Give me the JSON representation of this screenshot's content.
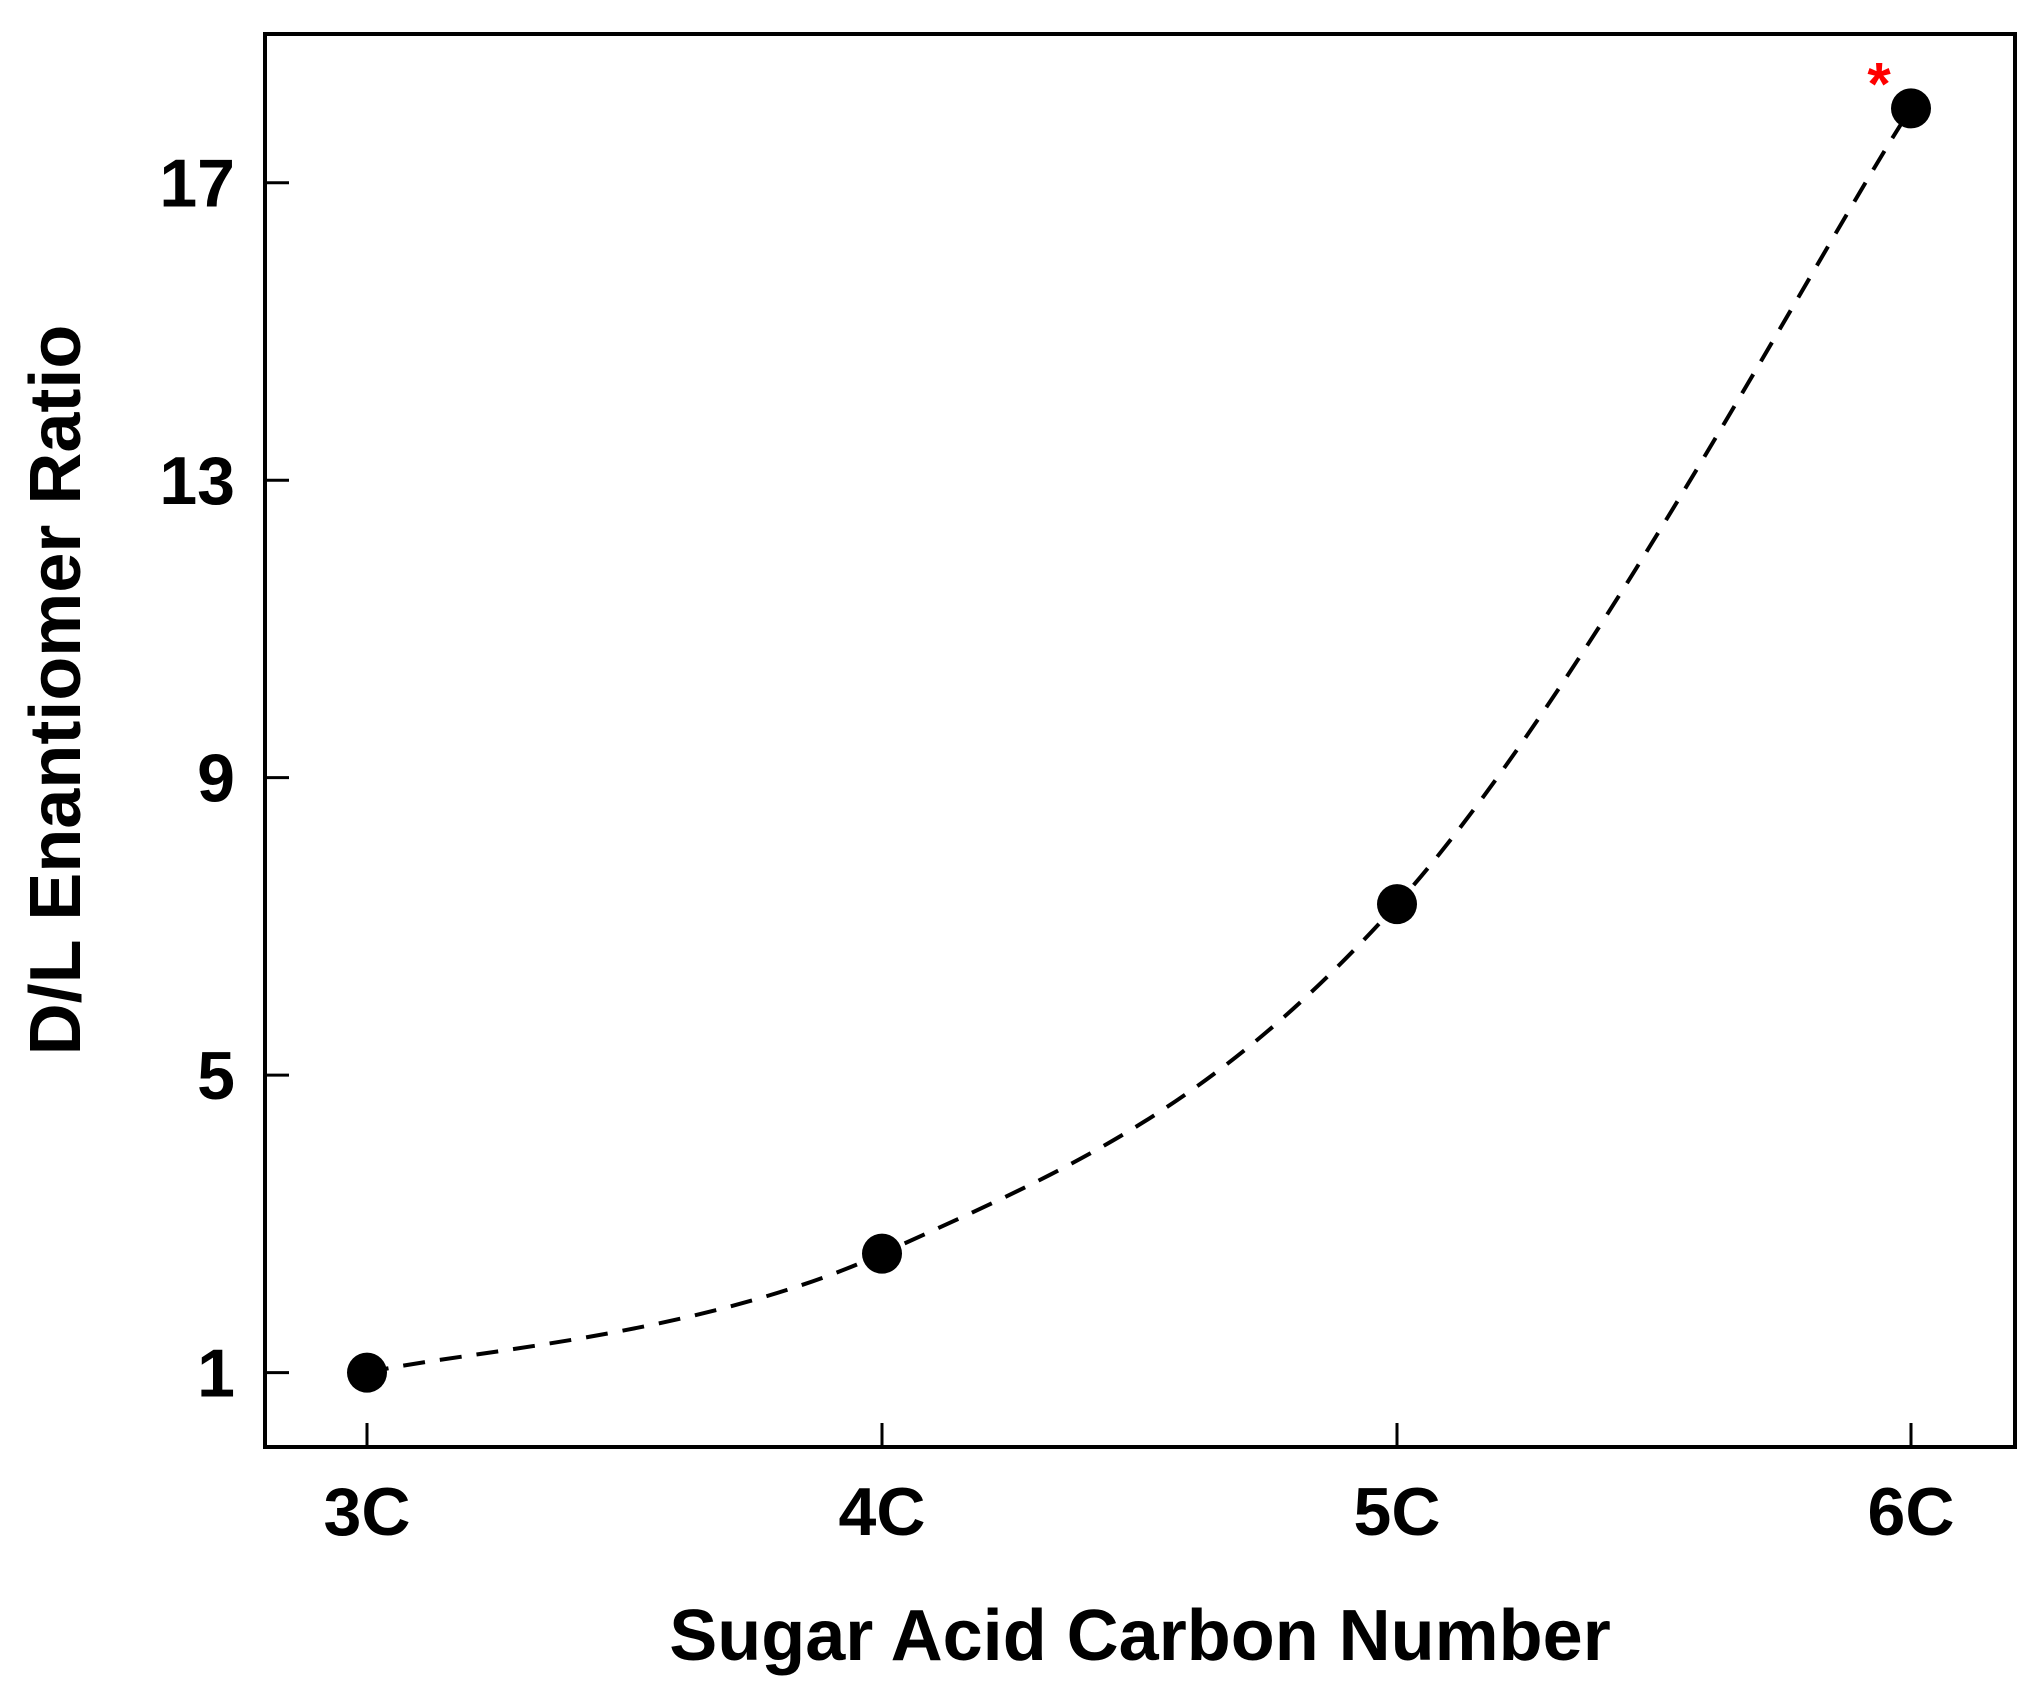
{
  "chart_data": {
    "type": "line",
    "title": "",
    "xlabel": "Sugar Acid Carbon Number",
    "ylabel": "D/L Enantiomer Ratio",
    "categories": [
      "3C",
      "4C",
      "5C",
      "6C"
    ],
    "series": [
      {
        "values": [
          1.0,
          2.6,
          7.3,
          18.0
        ],
        "color": "#000000",
        "line_style": "dashed",
        "marker": "filled-circle"
      }
    ],
    "yticks": [
      1,
      5,
      9,
      13,
      17
    ],
    "ylim": [
      0.0,
      19.0
    ],
    "grid": false,
    "legend": "none",
    "annotations": [
      {
        "text": "*",
        "category": "6C",
        "color": "#ff0000"
      }
    ]
  }
}
